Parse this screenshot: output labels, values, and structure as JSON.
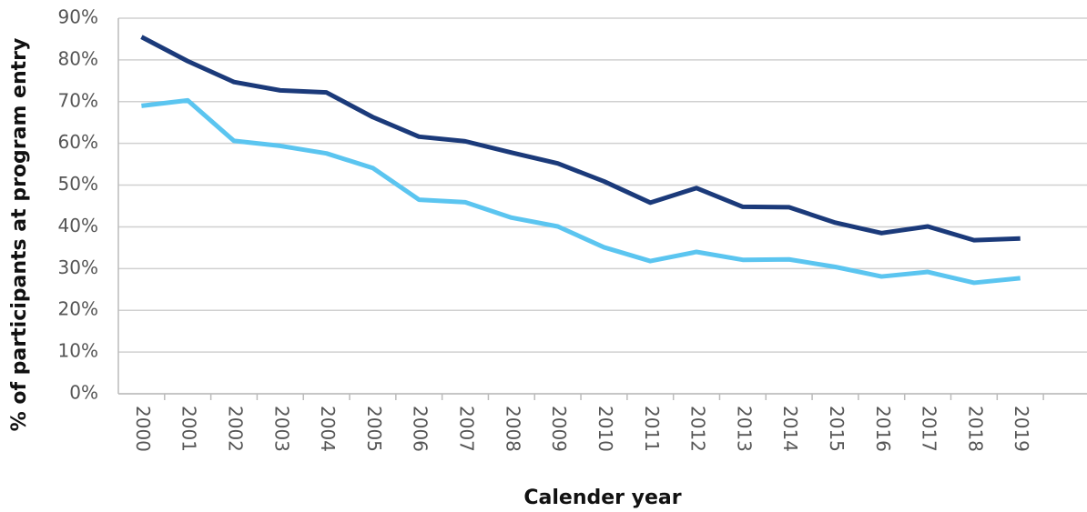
{
  "chart_data": {
    "type": "line",
    "ylabel": "% of participants at program entry",
    "xlabel": "Calender year",
    "categories": [
      "2000",
      "2001",
      "2002",
      "2003",
      "2004",
      "2005",
      "2006",
      "2007",
      "2008",
      "2009",
      "2010",
      "2011",
      "2012",
      "2013",
      "2014",
      "2015",
      "2016",
      "2017",
      "2018",
      "2019"
    ],
    "series": [
      {
        "color": "#1b3a7a",
        "values": [
          85.5,
          79.7,
          74.7,
          72.7,
          72.2,
          66.3,
          61.6,
          60.5,
          57.8,
          55.2,
          50.9,
          45.8,
          49.3,
          44.8,
          44.7,
          41.0,
          38.5,
          40.1,
          36.8,
          37.2
        ]
      },
      {
        "color": "#5bc5f0",
        "values": [
          69.0,
          70.3,
          60.6,
          59.4,
          57.6,
          54.1,
          46.5,
          45.9,
          42.2,
          40.1,
          35.1,
          31.8,
          34.0,
          32.1,
          32.2,
          30.4,
          28.1,
          29.2,
          26.6,
          27.7
        ]
      }
    ],
    "ylim": [
      0,
      90
    ],
    "yticks": [
      {
        "value": 0,
        "label": "0%"
      },
      {
        "value": 10,
        "label": "10%"
      },
      {
        "value": 20,
        "label": "20%"
      },
      {
        "value": 30,
        "label": "30%"
      },
      {
        "value": 40,
        "label": "40%"
      },
      {
        "value": 50,
        "label": "50%"
      },
      {
        "value": 60,
        "label": "60%"
      },
      {
        "value": 70,
        "label": "70%"
      },
      {
        "value": 80,
        "label": "80%"
      },
      {
        "value": 90,
        "label": "90%"
      }
    ],
    "grid": true
  }
}
